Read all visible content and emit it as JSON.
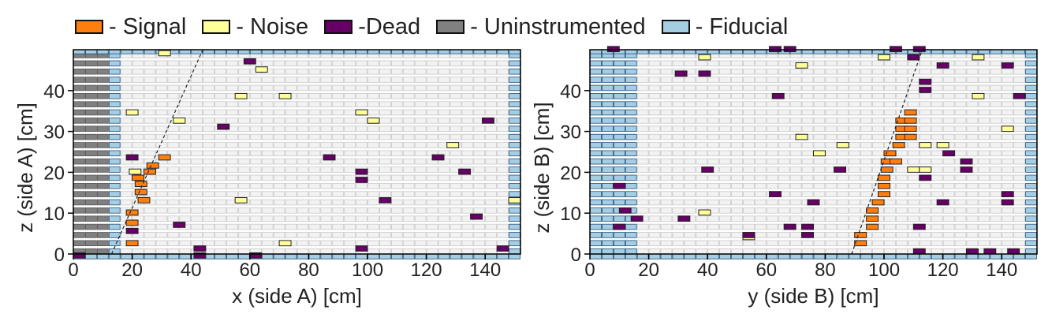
{
  "legend": [
    {
      "label": "- Signal",
      "color": "#ff7f0e",
      "name": "signal"
    },
    {
      "label": "- Noise",
      "color": "#ffff99",
      "name": "noise"
    },
    {
      "label": "-Dead",
      "color": "#660066",
      "name": "dead"
    },
    {
      "label": "- Uninstrumented",
      "color": "#808080",
      "name": "uninstrumented"
    },
    {
      "label": "- Fiducial",
      "color": "#a6cee3",
      "name": "fiducial"
    }
  ],
  "chart_data": [
    {
      "type": "scatter",
      "xlabel": "x (side A) [cm]",
      "ylabel": "z (side A) [cm]",
      "xlim": [
        0,
        152
      ],
      "ylim": [
        0,
        50
      ],
      "xticks": [
        "0",
        "20",
        "40",
        "60",
        "80",
        "100",
        "120",
        "140"
      ],
      "yticks": [
        "0",
        "10",
        "20",
        "30",
        "40"
      ],
      "strip_width_cm": 4,
      "strip_height_cm": 1.3,
      "uninstrumented_x": [
        0,
        12
      ],
      "fiducial_x": [
        [
          12,
          16
        ],
        [
          148,
          152
        ]
      ],
      "track": [
        [
          13,
          0
        ],
        [
          44,
          50
        ]
      ],
      "hits": {
        "signal": [
          [
            18,
            2
          ],
          [
            18,
            7
          ],
          [
            18,
            9.5
          ],
          [
            22,
            12.5
          ],
          [
            21,
            14.5
          ],
          [
            21,
            16.5
          ],
          [
            20,
            18
          ],
          [
            24,
            19.5
          ],
          [
            25,
            21
          ],
          [
            29,
            23
          ]
        ],
        "noise": [
          [
            29,
            48.5
          ],
          [
            62,
            44.5
          ],
          [
            55,
            38
          ],
          [
            70,
            38
          ],
          [
            18,
            34
          ],
          [
            34,
            32
          ],
          [
            96,
            34
          ],
          [
            100,
            32
          ],
          [
            127,
            26
          ],
          [
            19,
            19.5
          ],
          [
            55,
            12.5
          ],
          [
            148,
            12.5
          ],
          [
            70,
            2
          ]
        ],
        "dead": [
          [
            58,
            46.5
          ],
          [
            139,
            32
          ],
          [
            49,
            30.5
          ],
          [
            122,
            23
          ],
          [
            85,
            23
          ],
          [
            18,
            23
          ],
          [
            96,
            19.5
          ],
          [
            96,
            17.5
          ],
          [
            131,
            19.5
          ],
          [
            104,
            12.5
          ],
          [
            135,
            8.5
          ],
          [
            34,
            6.5
          ],
          [
            18,
            5
          ],
          [
            41,
            0.7
          ],
          [
            96,
            0.7
          ],
          [
            144,
            0.7
          ],
          [
            60,
            -1
          ],
          [
            41,
            -1
          ],
          [
            0,
            -1
          ]
        ]
      }
    },
    {
      "type": "scatter",
      "xlabel": "y (side B) [cm]",
      "ylabel": "z (side B) [cm]",
      "xlim": [
        0,
        152
      ],
      "ylim": [
        0,
        50
      ],
      "xticks": [
        "0",
        "20",
        "40",
        "60",
        "80",
        "100",
        "120",
        "140"
      ],
      "yticks": [
        "0",
        "10",
        "20",
        "30",
        "40"
      ],
      "strip_width_cm": 4,
      "strip_height_cm": 1.3,
      "uninstrumented_x": [],
      "fiducial_x": [
        [
          0,
          16
        ],
        [
          148,
          152
        ]
      ],
      "track": [
        [
          89,
          0
        ],
        [
          113,
          50
        ]
      ],
      "hits": {
        "signal": [
          [
            90,
            2
          ],
          [
            90,
            4
          ],
          [
            94,
            6
          ],
          [
            94,
            8
          ],
          [
            94,
            10
          ],
          [
            96,
            12
          ],
          [
            98,
            14
          ],
          [
            98,
            16
          ],
          [
            98,
            18
          ],
          [
            99,
            20
          ],
          [
            99,
            22
          ],
          [
            102,
            22
          ],
          [
            100,
            24
          ],
          [
            103,
            26
          ],
          [
            104,
            28
          ],
          [
            104,
            30
          ],
          [
            104,
            32
          ],
          [
            107,
            32
          ],
          [
            107,
            30
          ],
          [
            107,
            28
          ],
          [
            107,
            34
          ]
        ],
        "noise": [
          [
            37,
            47.5
          ],
          [
            70,
            45.5
          ],
          [
            130,
            47.5
          ],
          [
            98,
            47.5
          ],
          [
            130,
            38
          ],
          [
            70,
            28
          ],
          [
            140,
            30
          ],
          [
            84,
            26
          ],
          [
            112,
            26
          ],
          [
            118,
            26
          ],
          [
            76,
            24
          ],
          [
            108,
            20
          ],
          [
            112,
            20
          ],
          [
            37,
            9.5
          ],
          [
            52,
            3.5
          ]
        ],
        "dead": [
          [
            6,
            49.5
          ],
          [
            61,
            49.5
          ],
          [
            66,
            49.5
          ],
          [
            102,
            49.5
          ],
          [
            110,
            49.5
          ],
          [
            108,
            47.5
          ],
          [
            118,
            45.5
          ],
          [
            140,
            45.5
          ],
          [
            29,
            43.5
          ],
          [
            37,
            43.5
          ],
          [
            112,
            41.5
          ],
          [
            112,
            39.5
          ],
          [
            62,
            38
          ],
          [
            144,
            38
          ],
          [
            120,
            24
          ],
          [
            126,
            22
          ],
          [
            126,
            20
          ],
          [
            38,
            20
          ],
          [
            83,
            20
          ],
          [
            112,
            18
          ],
          [
            8,
            16
          ],
          [
            61,
            14
          ],
          [
            140,
            14
          ],
          [
            74,
            12
          ],
          [
            118,
            12
          ],
          [
            140,
            12
          ],
          [
            10,
            10
          ],
          [
            14,
            8
          ],
          [
            30,
            8
          ],
          [
            66,
            6
          ],
          [
            72,
            6
          ],
          [
            8,
            6
          ],
          [
            52,
            4
          ],
          [
            72,
            4
          ],
          [
            110,
            6
          ],
          [
            110,
            0
          ],
          [
            128,
            0
          ],
          [
            134,
            0
          ],
          [
            142,
            0
          ]
        ]
      }
    }
  ]
}
